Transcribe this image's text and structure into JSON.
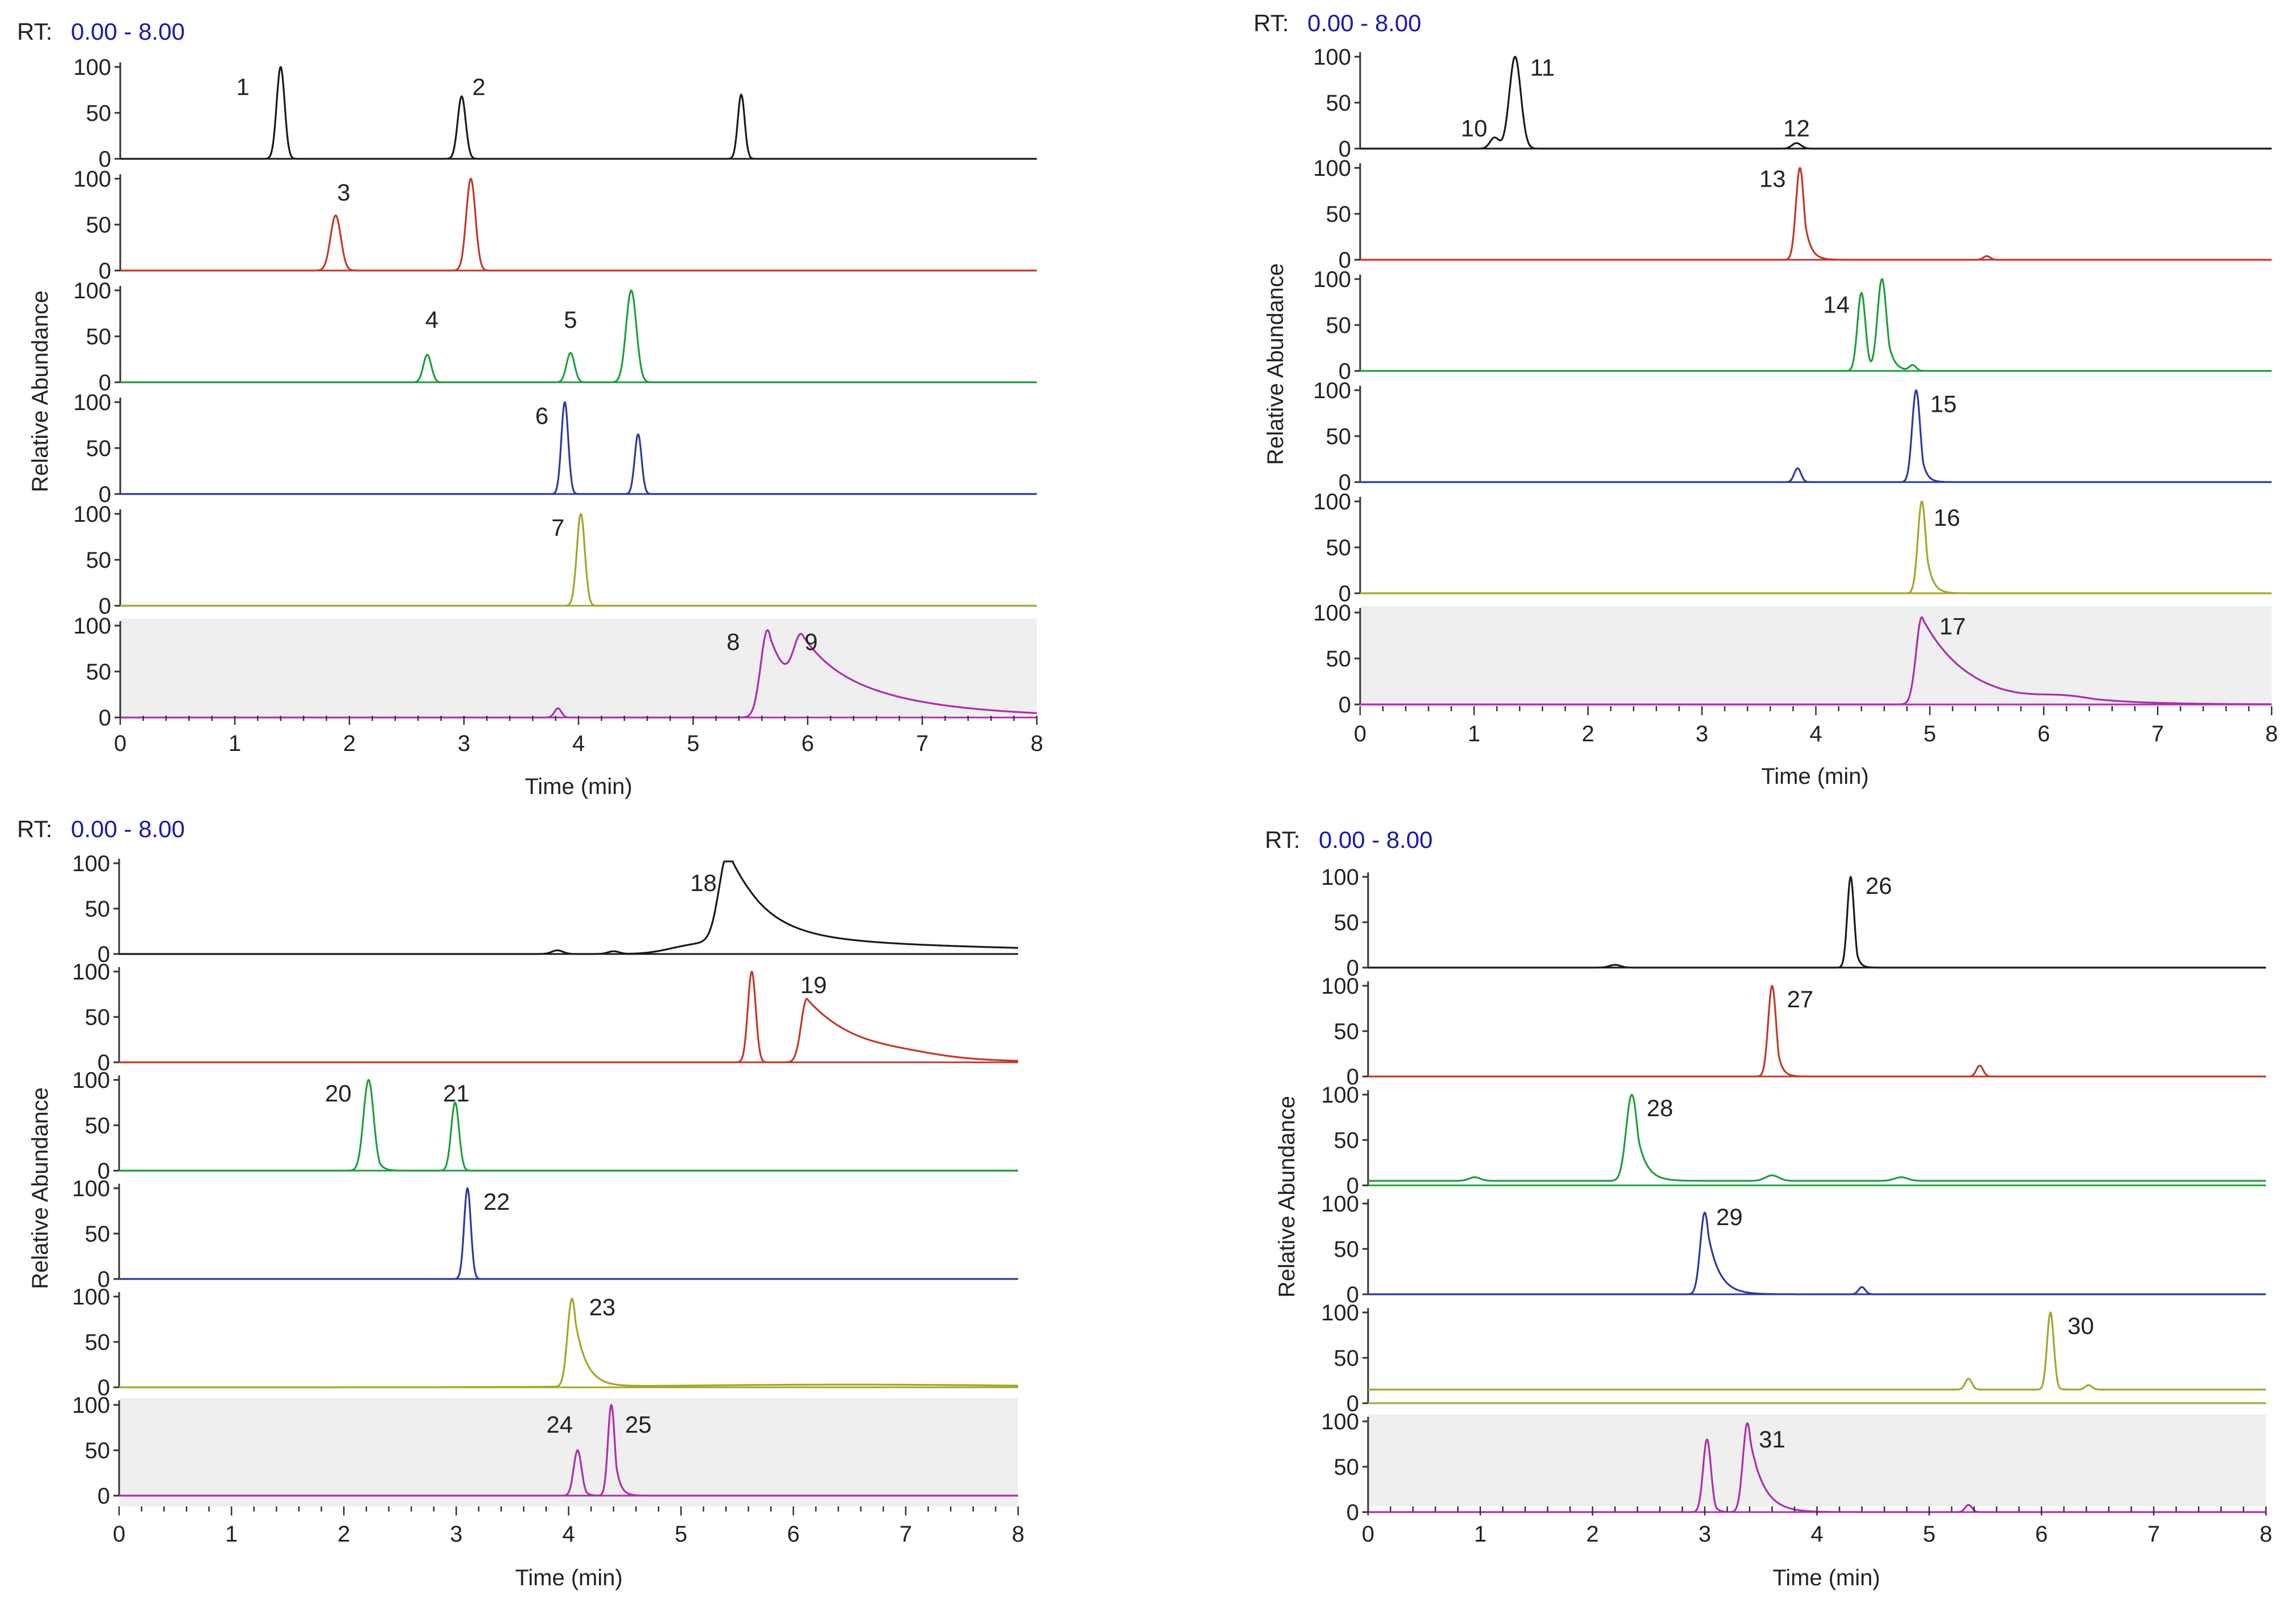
{
  "chart_data": [
    {
      "type": "line",
      "subtype": "stacked-chromatograms",
      "position": "top-left",
      "rt_label": "RT:",
      "rt_range": "0.00 - 8.00",
      "xlabel": "Time (min)",
      "ylabel": "Relative Abundance",
      "xlim": [
        0,
        8
      ],
      "xticks": [
        "0",
        "1",
        "2",
        "3",
        "4",
        "5",
        "6",
        "7",
        "8"
      ],
      "yticks": [
        "0",
        "50",
        "100"
      ],
      "traces": [
        {
          "color": "#1a1a1a",
          "shaded": false,
          "baseline": 0,
          "peaks": [
            {
              "t": 1.4,
              "h": 100,
              "w": 0.035,
              "tail": 0
            },
            {
              "t": 2.98,
              "h": 68,
              "w": 0.035,
              "tail": 0
            },
            {
              "t": 5.42,
              "h": 70,
              "w": 0.03,
              "tail": 0
            }
          ],
          "labels": [
            {
              "text": "1",
              "t": 1.07,
              "y": 78
            },
            {
              "text": "2",
              "t": 3.13,
              "y": 78
            }
          ]
        },
        {
          "color": "#c0392b",
          "shaded": false,
          "baseline": 0,
          "peaks": [
            {
              "t": 1.88,
              "h": 60,
              "w": 0.045,
              "tail": 0
            },
            {
              "t": 3.06,
              "h": 100,
              "w": 0.04,
              "tail": 0
            }
          ],
          "labels": [
            {
              "text": "3",
              "t": 1.95,
              "y": 85
            }
          ]
        },
        {
          "color": "#1e9e3e",
          "shaded": false,
          "baseline": 0,
          "peaks": [
            {
              "t": 2.68,
              "h": 30,
              "w": 0.035,
              "tail": 0
            },
            {
              "t": 3.93,
              "h": 32,
              "w": 0.035,
              "tail": 0
            },
            {
              "t": 4.46,
              "h": 100,
              "w": 0.045,
              "tail": 0
            }
          ],
          "labels": [
            {
              "text": "4",
              "t": 2.72,
              "y": 68
            },
            {
              "text": "5",
              "t": 3.93,
              "y": 68
            }
          ]
        },
        {
          "color": "#2d3a9e",
          "shaded": false,
          "baseline": 0,
          "peaks": [
            {
              "t": 3.88,
              "h": 100,
              "w": 0.03,
              "tail": 0
            },
            {
              "t": 4.52,
              "h": 65,
              "w": 0.03,
              "tail": 0
            }
          ],
          "labels": [
            {
              "text": "6",
              "t": 3.68,
              "y": 85
            }
          ]
        },
        {
          "color": "#a4a629",
          "shaded": false,
          "baseline": 0,
          "peaks": [
            {
              "t": 4.02,
              "h": 100,
              "w": 0.035,
              "tail": 0
            }
          ],
          "labels": [
            {
              "text": "7",
              "t": 3.82,
              "y": 85
            }
          ]
        },
        {
          "color": "#b02bb0",
          "shaded": true,
          "baseline": 0,
          "peaks": [
            {
              "t": 3.82,
              "h": 10,
              "w": 0.03,
              "tail": 0
            },
            {
              "t": 5.65,
              "h": 95,
              "w": 0.06,
              "tail": 0.25
            },
            {
              "t": 5.95,
              "h": 62,
              "w": 0.07,
              "tail": 0.8
            }
          ],
          "labels": [
            {
              "text": "8",
              "t": 5.35,
              "y": 82
            },
            {
              "text": "9",
              "t": 6.03,
              "y": 82
            }
          ]
        }
      ]
    },
    {
      "type": "line",
      "subtype": "stacked-chromatograms",
      "position": "top-right",
      "rt_label": "RT:",
      "rt_range": "0.00 - 8.00",
      "xlabel": "Time (min)",
      "ylabel": "Relative Abundance",
      "xlim": [
        0,
        8
      ],
      "xticks": [
        "0",
        "1",
        "2",
        "3",
        "4",
        "5",
        "6",
        "7",
        "8"
      ],
      "yticks": [
        "0",
        "50",
        "100"
      ],
      "traces": [
        {
          "color": "#1a1a1a",
          "shaded": false,
          "baseline": 0,
          "peaks": [
            {
              "t": 1.18,
              "h": 12,
              "w": 0.04,
              "tail": 0
            },
            {
              "t": 1.36,
              "h": 100,
              "w": 0.05,
              "tail": 0
            },
            {
              "t": 3.83,
              "h": 6,
              "w": 0.04,
              "tail": 0
            }
          ],
          "labels": [
            {
              "text": "10",
              "t": 1.0,
              "y": 22
            },
            {
              "text": "11",
              "t": 1.6,
              "y": 88
            },
            {
              "text": "12",
              "t": 3.83,
              "y": 22
            }
          ]
        },
        {
          "color": "#c0392b",
          "shaded": false,
          "baseline": 0,
          "peaks": [
            {
              "t": 3.86,
              "h": 100,
              "w": 0.035,
              "tail": 0.05
            },
            {
              "t": 5.5,
              "h": 4,
              "w": 0.03,
              "tail": 0
            }
          ],
          "labels": [
            {
              "text": "13",
              "t": 3.62,
              "y": 88
            }
          ]
        },
        {
          "color": "#1e9e3e",
          "shaded": false,
          "baseline": 0,
          "peaks": [
            {
              "t": 4.4,
              "h": 85,
              "w": 0.035,
              "tail": 0
            },
            {
              "t": 4.58,
              "h": 100,
              "w": 0.04,
              "tail": 0.05
            },
            {
              "t": 4.85,
              "h": 6,
              "w": 0.03,
              "tail": 0
            }
          ],
          "labels": [
            {
              "text": "14",
              "t": 4.18,
              "y": 72
            }
          ]
        },
        {
          "color": "#2d3a9e",
          "shaded": false,
          "baseline": 0,
          "peaks": [
            {
              "t": 3.84,
              "h": 15,
              "w": 0.03,
              "tail": 0
            },
            {
              "t": 4.88,
              "h": 100,
              "w": 0.035,
              "tail": 0.04
            }
          ],
          "labels": [
            {
              "text": "15",
              "t": 5.12,
              "y": 85
            }
          ]
        },
        {
          "color": "#a4a629",
          "shaded": false,
          "baseline": 0,
          "peaks": [
            {
              "t": 4.93,
              "h": 100,
              "w": 0.035,
              "tail": 0.05
            }
          ],
          "labels": [
            {
              "text": "16",
              "t": 5.15,
              "y": 82
            }
          ]
        },
        {
          "color": "#b02bb0",
          "shaded": true,
          "baseline": 0,
          "peaks": [
            {
              "t": 4.93,
              "h": 95,
              "w": 0.05,
              "tail": 0.4
            },
            {
              "t": 6.2,
              "h": 6,
              "w": 0.25,
              "tail": 0.5
            }
          ],
          "labels": [
            {
              "text": "17",
              "t": 5.2,
              "y": 85
            }
          ]
        }
      ]
    },
    {
      "type": "line",
      "subtype": "stacked-chromatograms",
      "position": "bottom-left",
      "rt_label": "RT:",
      "rt_range": "0.00 - 8.00",
      "xlabel": "Time (min)",
      "ylabel": "Relative Abundance",
      "xlim": [
        0,
        8
      ],
      "xticks": [
        "0",
        "1",
        "2",
        "3",
        "4",
        "5",
        "6",
        "7",
        "8"
      ],
      "yticks": [
        "0",
        "50",
        "100"
      ],
      "traces": [
        {
          "color": "#1a1a1a",
          "shaded": false,
          "baseline": 0,
          "peaks": [
            {
              "t": 3.9,
              "h": 4,
              "w": 0.05,
              "tail": 0
            },
            {
              "t": 4.4,
              "h": 3,
              "w": 0.05,
              "tail": 0
            },
            {
              "t": 5.05,
              "h": 6,
              "w": 0.2,
              "tail": 0
            },
            {
              "t": 5.42,
              "h": 95,
              "w": 0.08,
              "tail": 0.3
            },
            {
              "t": 5.6,
              "h": 20,
              "w": 0.3,
              "tail": 2.2
            }
          ],
          "labels": [
            {
              "text": "18",
              "t": 5.2,
              "y": 78
            }
          ]
        },
        {
          "color": "#c0392b",
          "shaded": false,
          "baseline": 0,
          "peaks": [
            {
              "t": 5.63,
              "h": 100,
              "w": 0.035,
              "tail": 0
            },
            {
              "t": 6.12,
              "h": 70,
              "w": 0.05,
              "tail": 0.5
            },
            {
              "t": 7.0,
              "h": 3,
              "w": 0.3,
              "tail": 0
            }
          ],
          "labels": [
            {
              "text": "19",
              "t": 6.18,
              "y": 85
            }
          ]
        },
        {
          "color": "#1e9e3e",
          "shaded": false,
          "baseline": 0,
          "peaks": [
            {
              "t": 2.22,
              "h": 100,
              "w": 0.045,
              "tail": 0.04
            },
            {
              "t": 2.99,
              "h": 75,
              "w": 0.035,
              "tail": 0
            }
          ],
          "labels": [
            {
              "text": "20",
              "t": 1.95,
              "y": 85
            },
            {
              "text": "21",
              "t": 3.0,
              "y": 85
            }
          ]
        },
        {
          "color": "#2d3a9e",
          "shaded": false,
          "baseline": 0,
          "peaks": [
            {
              "t": 3.1,
              "h": 100,
              "w": 0.03,
              "tail": 0
            }
          ],
          "labels": [
            {
              "text": "22",
              "t": 3.36,
              "y": 85
            }
          ]
        },
        {
          "color": "#a4a629",
          "shaded": false,
          "baseline": 0,
          "peaks": [
            {
              "t": 4.03,
              "h": 97,
              "w": 0.04,
              "tail": 0.1
            },
            {
              "t": 6.5,
              "h": 3,
              "w": 1.5,
              "tail": 0
            }
          ],
          "labels": [
            {
              "text": "23",
              "t": 4.3,
              "y": 88
            }
          ]
        },
        {
          "color": "#b02bb0",
          "shaded": true,
          "baseline": 0,
          "peaks": [
            {
              "t": 4.08,
              "h": 50,
              "w": 0.035,
              "tail": 0.03
            },
            {
              "t": 4.38,
              "h": 100,
              "w": 0.03,
              "tail": 0.04
            }
          ],
          "labels": [
            {
              "text": "24",
              "t": 3.92,
              "y": 78
            },
            {
              "text": "25",
              "t": 4.62,
              "y": 78
            }
          ]
        }
      ]
    },
    {
      "type": "line",
      "subtype": "stacked-chromatograms",
      "position": "bottom-right",
      "rt_label": "RT:",
      "rt_range": "0.00 - 8.00",
      "xlabel": "Time (min)",
      "ylabel": "Relative Abundance",
      "xlim": [
        0,
        8
      ],
      "xticks": [
        "0",
        "1",
        "2",
        "3",
        "4",
        "5",
        "6",
        "7",
        "8"
      ],
      "yticks": [
        "0",
        "50",
        "100"
      ],
      "traces": [
        {
          "color": "#1a1a1a",
          "shaded": false,
          "baseline": 0,
          "peaks": [
            {
              "t": 2.2,
              "h": 3,
              "w": 0.05,
              "tail": 0
            },
            {
              "t": 4.3,
              "h": 100,
              "w": 0.03,
              "tail": 0.03
            }
          ],
          "labels": [
            {
              "text": "26",
              "t": 4.55,
              "y": 90
            }
          ]
        },
        {
          "color": "#c0392b",
          "shaded": false,
          "baseline": 0,
          "peaks": [
            {
              "t": 3.6,
              "h": 100,
              "w": 0.035,
              "tail": 0.04
            },
            {
              "t": 5.45,
              "h": 12,
              "w": 0.03,
              "tail": 0
            }
          ],
          "labels": [
            {
              "text": "27",
              "t": 3.85,
              "y": 85
            }
          ]
        },
        {
          "color": "#1e9e3e",
          "shaded": false,
          "baseline": 5,
          "peaks": [
            {
              "t": 0.95,
              "h": 4,
              "w": 0.05,
              "tail": 0
            },
            {
              "t": 2.35,
              "h": 95,
              "w": 0.05,
              "tail": 0.08
            },
            {
              "t": 3.6,
              "h": 6,
              "w": 0.06,
              "tail": 0
            },
            {
              "t": 4.75,
              "h": 4,
              "w": 0.06,
              "tail": 0
            }
          ],
          "labels": [
            {
              "text": "28",
              "t": 2.6,
              "y": 85
            }
          ]
        },
        {
          "color": "#2d3a9e",
          "shaded": false,
          "baseline": 0,
          "peaks": [
            {
              "t": 3.0,
              "h": 90,
              "w": 0.04,
              "tail": 0.1
            },
            {
              "t": 4.4,
              "h": 8,
              "w": 0.03,
              "tail": 0
            }
          ],
          "labels": [
            {
              "text": "29",
              "t": 3.22,
              "y": 85
            }
          ]
        },
        {
          "color": "#a4a629",
          "shaded": false,
          "baseline": 15,
          "peaks": [
            {
              "t": 5.35,
              "h": 12,
              "w": 0.03,
              "tail": 0
            },
            {
              "t": 6.08,
              "h": 85,
              "w": 0.03,
              "tail": 0.02
            },
            {
              "t": 6.42,
              "h": 5,
              "w": 0.03,
              "tail": 0
            }
          ],
          "labels": [
            {
              "text": "30",
              "t": 6.35,
              "y": 85
            }
          ]
        },
        {
          "color": "#b02bb0",
          "shaded": true,
          "baseline": 0,
          "peaks": [
            {
              "t": 3.02,
              "h": 80,
              "w": 0.035,
              "tail": 0.03
            },
            {
              "t": 3.38,
              "h": 98,
              "w": 0.04,
              "tail": 0.12
            },
            {
              "t": 5.35,
              "h": 8,
              "w": 0.03,
              "tail": 0
            }
          ],
          "labels": [
            {
              "text": "31",
              "t": 3.6,
              "y": 80
            }
          ]
        }
      ]
    }
  ]
}
